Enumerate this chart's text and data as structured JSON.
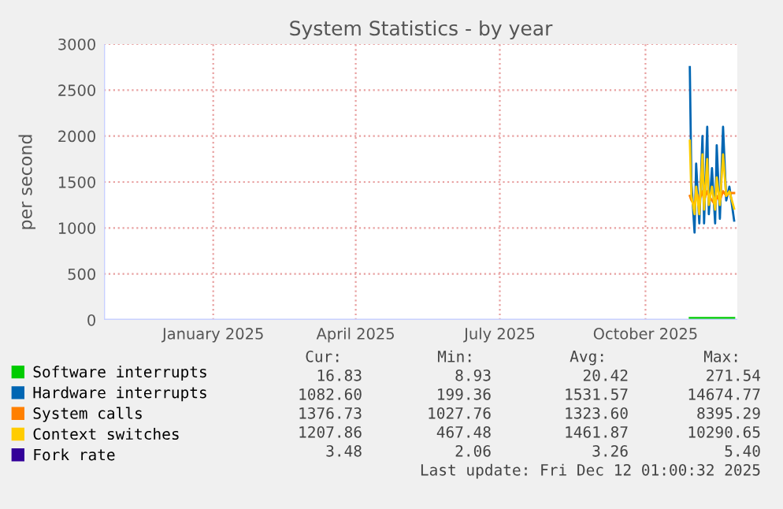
{
  "chart_data": {
    "type": "line",
    "title": "System Statistics - by year",
    "ylabel": "per second",
    "x": [
      "2025-11-12",
      "2025-11-13",
      "2025-11-15",
      "2025-11-16",
      "2025-11-18",
      "2025-11-20",
      "2025-11-21",
      "2025-11-23",
      "2025-11-24",
      "2025-11-26",
      "2025-11-28",
      "2025-11-29",
      "2025-12-01",
      "2025-12-03",
      "2025-12-05",
      "2025-12-07",
      "2025-12-10"
    ],
    "series": [
      {
        "name": "Software interrupts",
        "color": "#00cc00",
        "values": [
          20,
          20,
          20,
          20,
          20,
          20,
          20,
          20,
          20,
          20,
          20,
          20,
          20,
          20,
          20,
          20,
          20
        ]
      },
      {
        "name": "Hardware interrupts",
        "color": "#0066b3",
        "values": [
          2750,
          1500,
          950,
          1700,
          1050,
          2000,
          1050,
          2100,
          1150,
          1650,
          1050,
          1900,
          1100,
          2100,
          1300,
          1450,
          1080
        ]
      },
      {
        "name": "System calls",
        "color": "#ff8000",
        "values": [
          1350,
          1300,
          1250,
          1400,
          1300,
          1400,
          1300,
          1400,
          1350,
          1300,
          1250,
          1350,
          1300,
          1400,
          1350,
          1380,
          1380
        ]
      },
      {
        "name": "Context switches",
        "color": "#ffcc00",
        "values": [
          1950,
          1350,
          1150,
          1450,
          1150,
          1800,
          1200,
          1750,
          1250,
          1450,
          1200,
          1550,
          1250,
          1800,
          1350,
          1400,
          1210
        ]
      },
      {
        "name": "Fork rate",
        "color": "#330099",
        "values": [
          null,
          null,
          null,
          null,
          null,
          null,
          null,
          null,
          null,
          null,
          null,
          null,
          null,
          null,
          null,
          null,
          null
        ]
      }
    ],
    "xlim": [
      "2024-11-07",
      "2025-12-12"
    ],
    "xticks": [
      {
        "value": "2025-01-15",
        "label": "January 2025"
      },
      {
        "value": "2025-04-15",
        "label": "April 2025"
      },
      {
        "value": "2025-07-15",
        "label": "July 2025"
      },
      {
        "value": "2025-10-15",
        "label": "October 2025"
      }
    ],
    "ylim": [
      0,
      3000
    ],
    "yticks": [
      0,
      500,
      1000,
      1500,
      2000,
      2500,
      3000
    ],
    "grid": true,
    "legend": "bottom",
    "marker": "none",
    "line_style": "solid",
    "annotations": [
      "Cur:",
      "Min:",
      "Avg:",
      "Max:",
      "16.83",
      "8.93",
      "20.42",
      "271.54",
      "1082.60",
      "199.36",
      "1531.57",
      "14674.77",
      "1376.73",
      "1027.76",
      "1323.60",
      "8395.29",
      "1207.86",
      "467.48",
      "1461.87",
      "10290.65",
      "3.48",
      "2.06",
      "3.26",
      "5.40",
      "Last update: Fri Dec 12 01:00:32 2025"
    ]
  }
}
